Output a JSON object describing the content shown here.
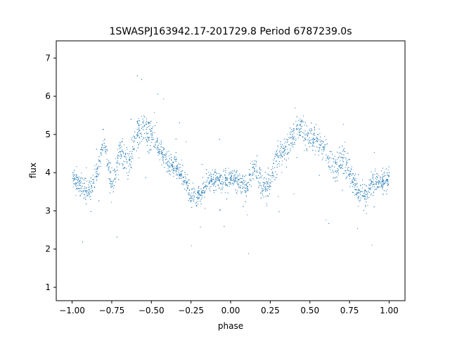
{
  "chart_data": {
    "type": "scatter",
    "title": "1SWASPJ163942.17-201729.8 Period 6787239.0s",
    "xlabel": "phase",
    "ylabel": "flux",
    "xlim": [
      -1.1,
      1.1
    ],
    "ylim": [
      0.65,
      7.45
    ],
    "xticks": [
      -1.0,
      -0.75,
      -0.5,
      -0.25,
      0.0,
      0.25,
      0.5,
      0.75,
      1.0
    ],
    "xtick_labels": [
      "−1.00",
      "−0.75",
      "−0.50",
      "−0.25",
      "0.00",
      "0.25",
      "0.50",
      "0.75",
      "1.00"
    ],
    "yticks": [
      1,
      2,
      3,
      4,
      5,
      6,
      7
    ],
    "ytick_labels": [
      "1",
      "2",
      "3",
      "4",
      "5",
      "6",
      "7"
    ],
    "grid": false,
    "legend": "none",
    "marker_color": "#1f77b4",
    "series": [
      {
        "x": [
          -1.0,
          -0.95,
          -0.9,
          -0.85,
          -0.8,
          -0.75,
          -0.7,
          -0.65,
          -0.6,
          -0.55,
          -0.5,
          -0.45,
          -0.4,
          -0.35,
          -0.3,
          -0.25,
          -0.2,
          -0.15,
          -0.1,
          -0.05,
          0.0,
          0.05,
          0.1,
          0.15,
          0.2,
          0.25,
          0.3,
          0.35,
          0.4,
          0.45,
          0.5,
          0.55,
          0.6,
          0.65,
          0.7,
          0.75,
          0.8,
          0.85,
          0.9,
          0.95,
          1.0
        ],
        "y": [
          3.9,
          3.7,
          3.5,
          3.9,
          4.9,
          3.6,
          4.6,
          4.2,
          5.0,
          5.2,
          5.0,
          4.6,
          4.3,
          4.2,
          3.9,
          3.4,
          3.4,
          3.8,
          3.8,
          3.8,
          3.8,
          3.8,
          3.6,
          4.2,
          3.6,
          3.8,
          4.5,
          4.6,
          5.1,
          5.1,
          5.0,
          4.8,
          4.6,
          4.1,
          4.4,
          4.0,
          3.5,
          3.4,
          3.8,
          3.7,
          3.9
        ],
        "spread": [
          0.35,
          0.35,
          0.45,
          0.4,
          0.35,
          0.45,
          0.5,
          0.45,
          0.45,
          0.5,
          0.55,
          0.45,
          0.4,
          0.35,
          0.35,
          0.35,
          0.35,
          0.35,
          0.35,
          0.35,
          0.35,
          0.35,
          0.4,
          0.45,
          0.45,
          0.45,
          0.5,
          0.45,
          0.45,
          0.45,
          0.55,
          0.45,
          0.45,
          0.45,
          0.45,
          0.45,
          0.4,
          0.45,
          0.4,
          0.35,
          0.35
        ]
      }
    ]
  }
}
